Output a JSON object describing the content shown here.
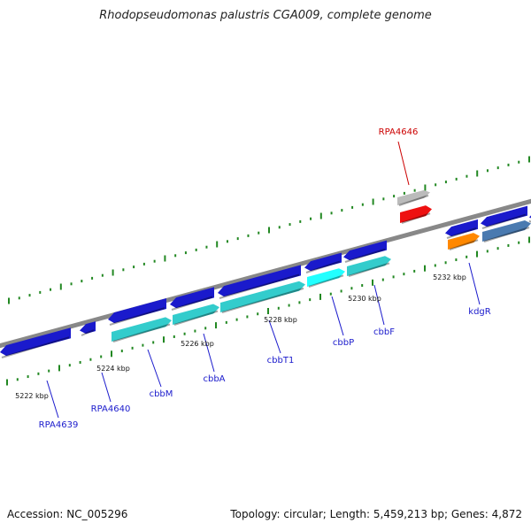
{
  "title": "Rhodopseudomonas palustris CGA009, complete genome",
  "accession": "Accession: NC_005296",
  "summary": "Topology: circular; Length: 5,459,213 bp; Genes: 4,872",
  "colors": {
    "backbone": "#888888",
    "gene_blue": "#1a1acc",
    "cyan": "#33cccc",
    "cyan_bright": "#22ffff",
    "orange": "#ff8800",
    "steel": "#4a7ab0",
    "red": "#ee1111",
    "gray": "#bbbbbb",
    "tick": "#228822",
    "label_blue": "#1a1acc",
    "label_red": "#cc0000"
  },
  "scale_labels": [
    "5222 kbp",
    "5224 kbp",
    "5226 kbp",
    "5228 kbp",
    "5230 kbp",
    "5232 kbp"
  ],
  "gene_labels": [
    {
      "name": "RPA4639",
      "color": "label_blue"
    },
    {
      "name": "RPA4640",
      "color": "label_blue"
    },
    {
      "name": "cbbM",
      "color": "label_blue"
    },
    {
      "name": "cbbA",
      "color": "label_blue"
    },
    {
      "name": "cbbT1",
      "color": "label_blue"
    },
    {
      "name": "cbbP",
      "color": "label_blue"
    },
    {
      "name": "cbbF",
      "color": "label_blue"
    },
    {
      "name": "kdgR",
      "color": "label_blue"
    },
    {
      "name": "RPA4646",
      "color": "label_red"
    }
  ]
}
